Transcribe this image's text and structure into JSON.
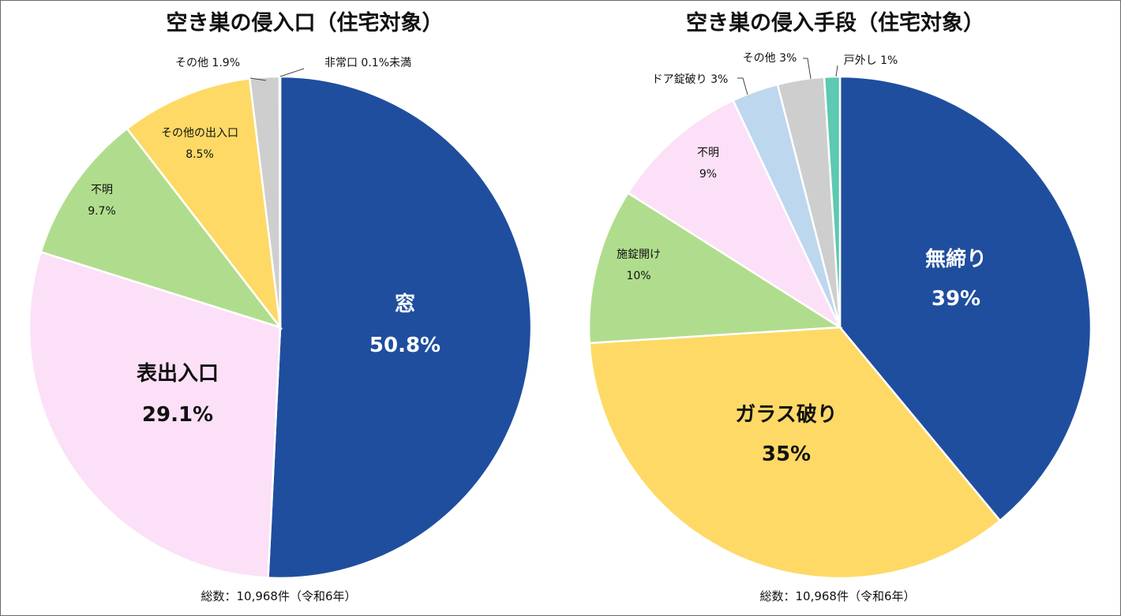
{
  "chart_data": [
    {
      "type": "pie",
      "title": "空き巣の侵入口（住宅対象）",
      "note": "総数：10,968件（令和6年）",
      "slices": [
        {
          "name": "窓",
          "value": 50.8,
          "label": "50.8%",
          "color": "#1f4e9e"
        },
        {
          "name": "表出入口",
          "value": 29.1,
          "label": "29.1%",
          "color": "#fce0f7"
        },
        {
          "name": "不明",
          "value": 9.7,
          "label": "9.7%",
          "color": "#b0dd8d"
        },
        {
          "name": "その他の出入口",
          "value": 8.5,
          "label": "8.5%",
          "color": "#fed966"
        },
        {
          "name": "その他",
          "value": 1.9,
          "label": "1.9%",
          "color": "#cecece"
        },
        {
          "name": "非常口",
          "value": 0.05,
          "label": "0.1%未満",
          "color": "#8fa9d9"
        }
      ]
    },
    {
      "type": "pie",
      "title": "空き巣の侵入手段（住宅対象）",
      "note": "総数：10,968件（令和6年）",
      "slices": [
        {
          "name": "無締り",
          "value": 39,
          "label": "39%",
          "color": "#1f4e9e"
        },
        {
          "name": "ガラス破り",
          "value": 35,
          "label": "35%",
          "color": "#fed966"
        },
        {
          "name": "施錠開け",
          "value": 10,
          "label": "10%",
          "color": "#b0dd8d"
        },
        {
          "name": "不明",
          "value": 9,
          "label": "9%",
          "color": "#fce0f7"
        },
        {
          "name": "ドア錠破り",
          "value": 3,
          "label": "3%",
          "color": "#bdd7ee"
        },
        {
          "name": "その他",
          "value": 3,
          "label": "3%",
          "color": "#cecece"
        },
        {
          "name": "戸外し",
          "value": 1,
          "label": "1%",
          "color": "#5cc9b0"
        }
      ]
    }
  ]
}
